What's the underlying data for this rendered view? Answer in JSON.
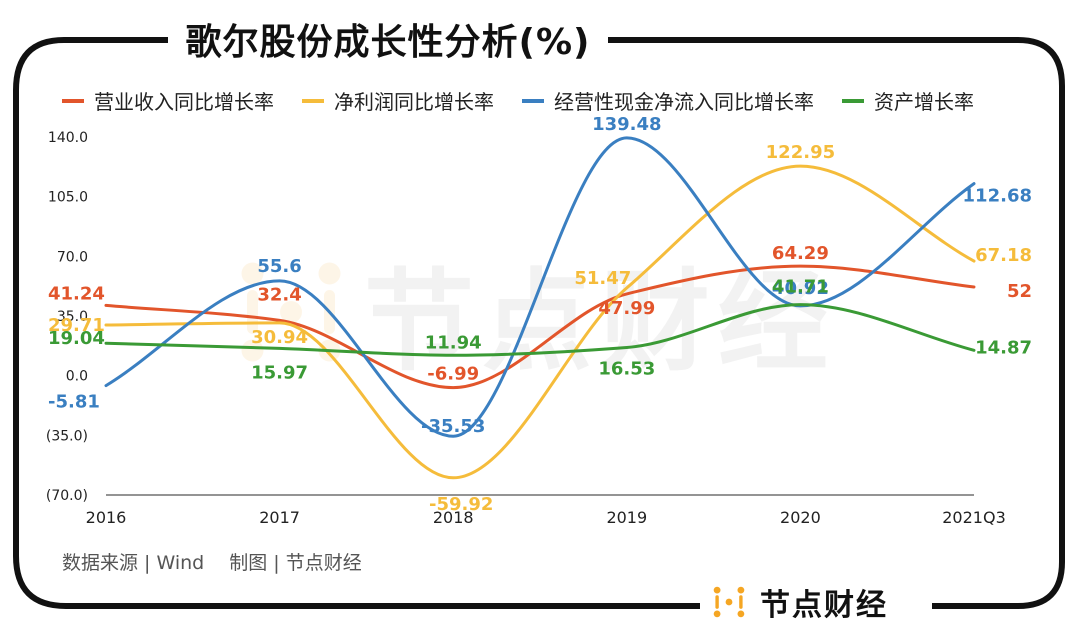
{
  "title": "歌尔股份成长性分析(%)",
  "source_text": "数据来源 | Wind　 制图 | 节点财经",
  "brand": "节点财经",
  "watermark": "节点财经",
  "colors": {
    "revenue": "#E2552B",
    "profit": "#F5BC3B",
    "cashflow": "#3A7FC1",
    "assets": "#3A9A35",
    "brand_orange": "#F5A623",
    "frame": "#111111"
  },
  "chart_data": {
    "type": "line",
    "smooth": true,
    "categories": [
      "2016",
      "2017",
      "2018",
      "2019",
      "2020",
      "2021Q3"
    ],
    "y_ticks": [
      "140.0",
      "105.0",
      "70.0",
      "35.0",
      "0.0",
      "(35.0)",
      "(70.0)"
    ],
    "y_tick_values": [
      140,
      105,
      70,
      35,
      0,
      -35,
      -70
    ],
    "ylim": [
      -70,
      140
    ],
    "grid": false,
    "legend_position": "top",
    "series": [
      {
        "name": "营业收入同比增长率",
        "key": "revenue",
        "values": [
          41.24,
          32.4,
          -6.99,
          47.99,
          64.29,
          52
        ],
        "labels": [
          "41.24",
          "32.4",
          "-6.99",
          "47.99",
          "64.29",
          "52"
        ]
      },
      {
        "name": "净利润同比增长率",
        "key": "profit",
        "values": [
          29.71,
          30.94,
          -59.92,
          51.47,
          122.95,
          67.18
        ],
        "labels": [
          "29.71",
          "30.94",
          "-59.92",
          "51.47",
          "122.95",
          "67.18"
        ]
      },
      {
        "name": "经营性现金净流入同比增长率",
        "key": "cashflow",
        "values": [
          -5.81,
          55.6,
          -35.53,
          139.48,
          40.92,
          112.68
        ],
        "labels": [
          "-5.81",
          "55.6",
          "-35.53",
          "139.48",
          "40.92",
          "112.68"
        ]
      },
      {
        "name": "资产增长率",
        "key": "assets",
        "values": [
          19.04,
          15.97,
          11.94,
          16.53,
          41.71,
          14.87
        ],
        "labels": [
          "19.04",
          "15.97",
          "11.94",
          "16.53",
          "41.71",
          "14.87"
        ]
      }
    ]
  }
}
